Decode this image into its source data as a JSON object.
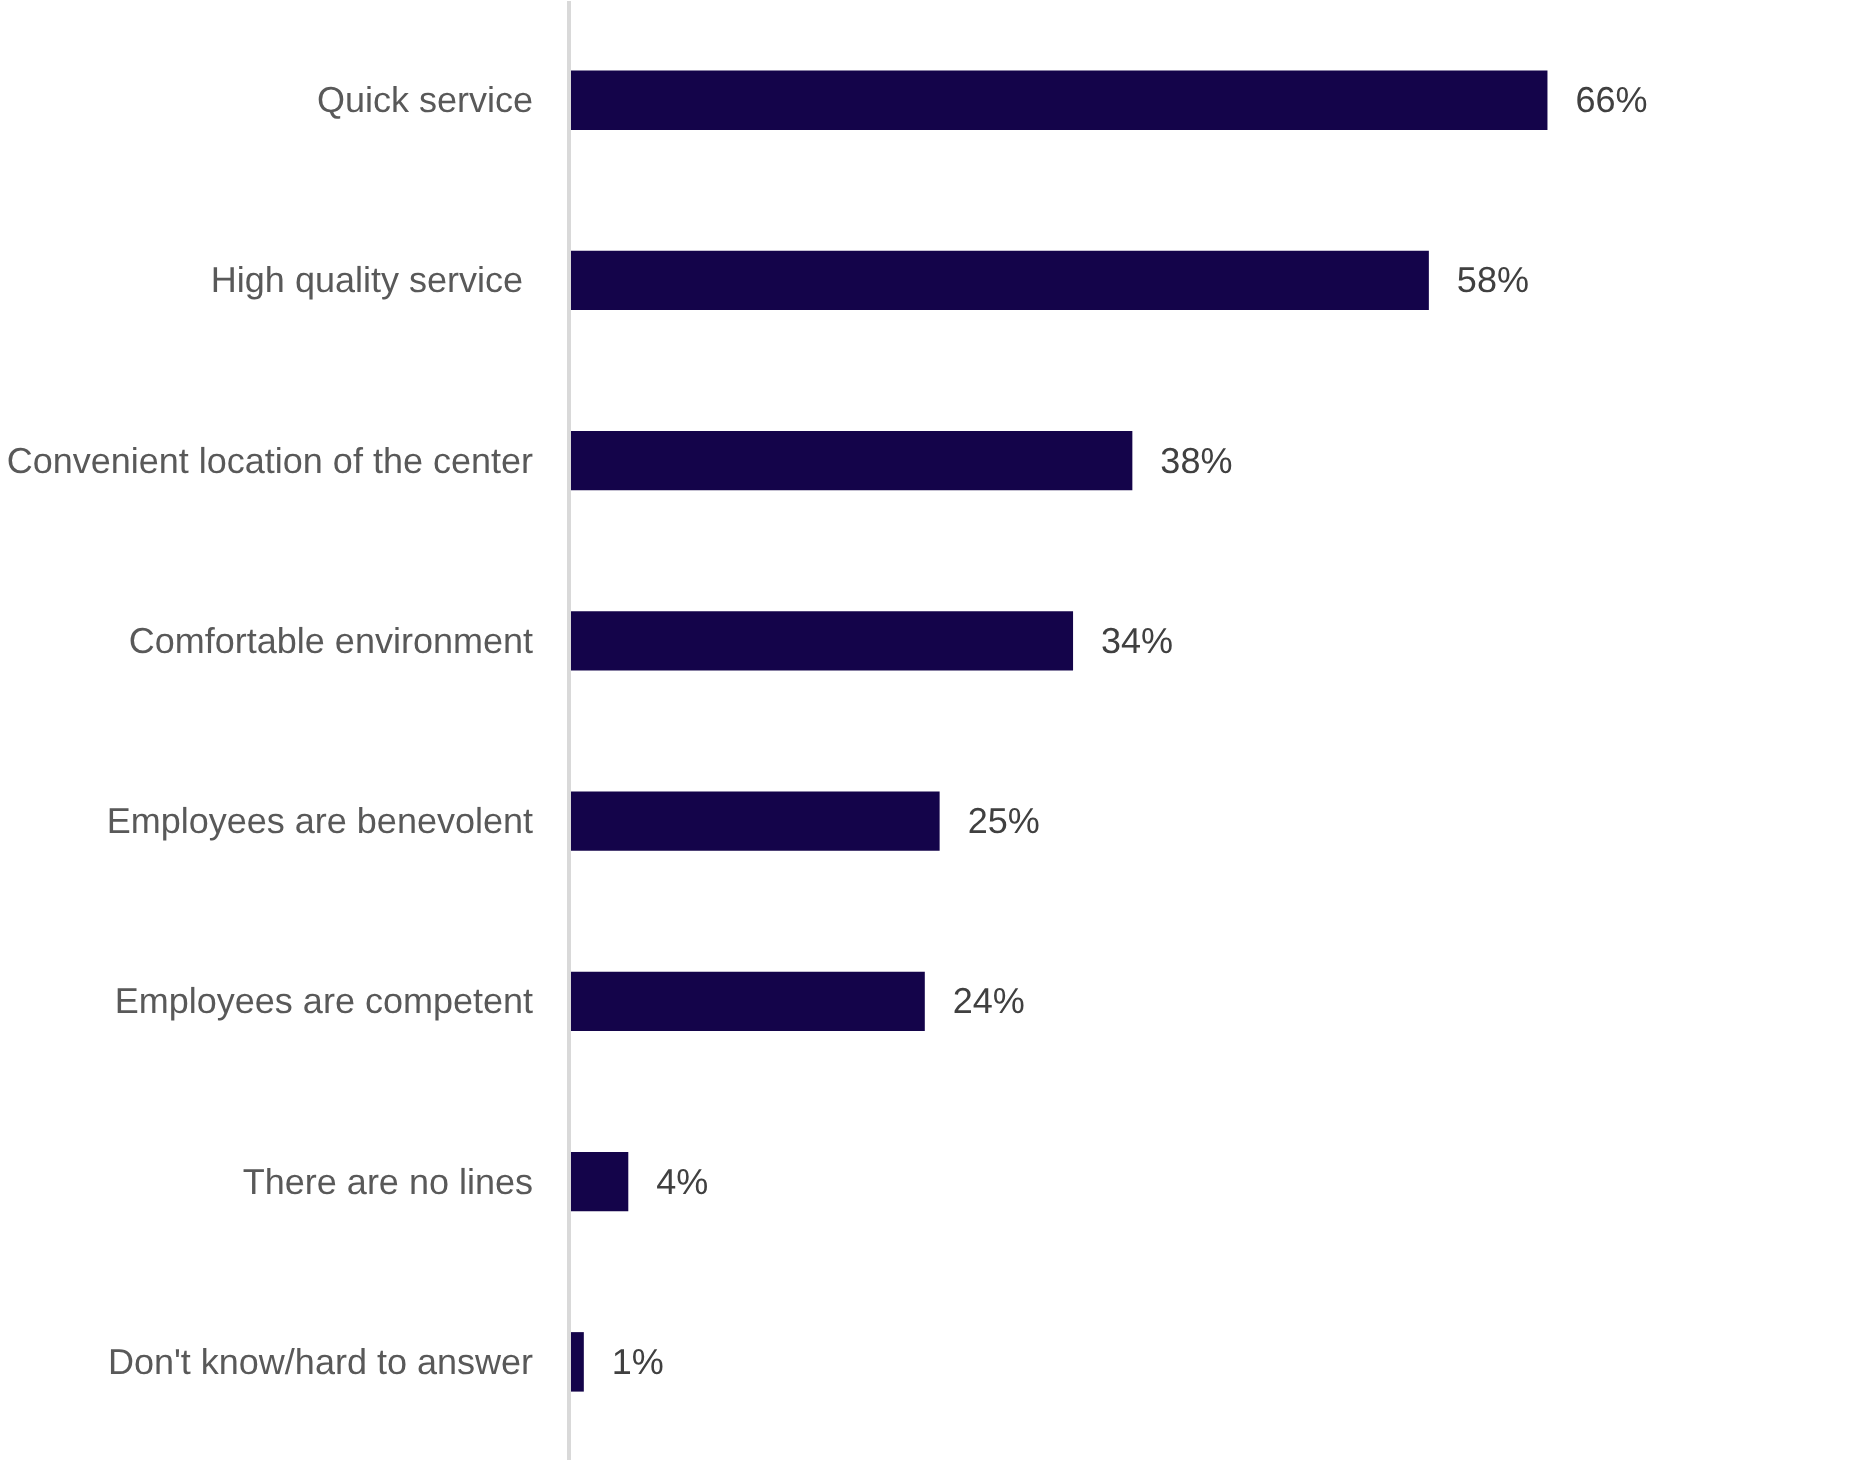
{
  "chart_data": {
    "type": "bar",
    "orientation": "horizontal",
    "categories": [
      "Quick service",
      "High quality service ",
      "Convenient location of the center",
      "Comfortable environment",
      "Employees are benevolent",
      "Employees are competent",
      "There are no lines",
      "Don't know/hard to answer"
    ],
    "values": [
      66,
      58,
      38,
      34,
      25,
      24,
      4,
      1
    ],
    "value_labels": [
      "66%",
      "58%",
      "38%",
      "34%",
      "25%",
      "24%",
      "4%",
      "1%"
    ],
    "color": "#14044a",
    "grid": false
  }
}
